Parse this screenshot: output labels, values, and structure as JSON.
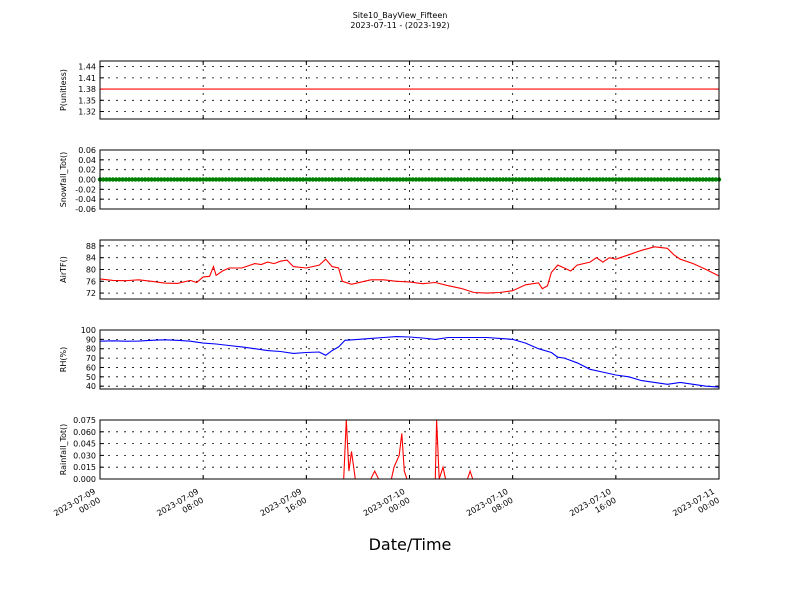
{
  "figure": {
    "title": "Site10_BayView_Fifteen",
    "subtitle": "2023-07-11 - (2023-192)",
    "xlabel": "Date/Time"
  },
  "chart_data": [
    {
      "type": "line",
      "ylabel": "P(unitless)",
      "color": "#ff0000",
      "yticks": [
        "1.44",
        "1.41",
        "1.38",
        "1.35",
        "1.32"
      ],
      "ylim": [
        1.3,
        1.455
      ],
      "x_hours": [
        0,
        48
      ],
      "series": [
        {
          "values": [
            [
              0,
              1.38
            ],
            [
              48,
              1.38
            ]
          ]
        }
      ],
      "grid": true
    },
    {
      "type": "scatter",
      "ylabel": "Snowfall_Tot()",
      "color": "#008000",
      "yticks": [
        "0.06",
        "0.04",
        "0.02",
        "0.00",
        "-0.02",
        "-0.04",
        "-0.06"
      ],
      "ylim": [
        -0.06,
        0.06
      ],
      "x_hours": [
        0,
        48
      ],
      "series": [
        {
          "values": "constant 0.00 every 15 min from 2023-07-09 00:00 to 2023-07-11 00:00"
        }
      ],
      "grid": true
    },
    {
      "type": "line",
      "ylabel": "AirTF()",
      "color": "#ff0000",
      "yticks": [
        "88",
        "84",
        "80",
        "76",
        "72"
      ],
      "ylim": [
        70,
        90
      ],
      "x_hours": [
        0,
        48
      ],
      "series": [
        {
          "values": [
            [
              0,
              76.8
            ],
            [
              1,
              76.3
            ],
            [
              2,
              76.2
            ],
            [
              3,
              76.5
            ],
            [
              4,
              76
            ],
            [
              5,
              75.4
            ],
            [
              6,
              75.3
            ],
            [
              7,
              76.3
            ],
            [
              7.5,
              75.6
            ],
            [
              8,
              77.5
            ],
            [
              8.5,
              77.7
            ],
            [
              8.8,
              81
            ],
            [
              9,
              78
            ],
            [
              9.5,
              79.5
            ],
            [
              10,
              80.5
            ],
            [
              11,
              80.5
            ],
            [
              12,
              82
            ],
            [
              12.5,
              81.7
            ],
            [
              13,
              82.5
            ],
            [
              13.5,
              82
            ],
            [
              14,
              82.8
            ],
            [
              14.5,
              83.2
            ],
            [
              15,
              81
            ],
            [
              16,
              80.5
            ],
            [
              17,
              81.5
            ],
            [
              17.5,
              83.5
            ],
            [
              18,
              81
            ],
            [
              18.5,
              80.5
            ],
            [
              18.8,
              76
            ],
            [
              19.5,
              75
            ],
            [
              20,
              75.5
            ],
            [
              21,
              76.5
            ],
            [
              22,
              76.5
            ],
            [
              23,
              76
            ],
            [
              24,
              75.8
            ],
            [
              25,
              75.2
            ],
            [
              26,
              75.6
            ],
            [
              27,
              74.5
            ],
            [
              28,
              73.6
            ],
            [
              29,
              72.2
            ],
            [
              30,
              72
            ],
            [
              31,
              72.2
            ],
            [
              32,
              72.8
            ],
            [
              33,
              74.8
            ],
            [
              34,
              75.5
            ],
            [
              34.3,
              73.5
            ],
            [
              34.7,
              74.5
            ],
            [
              35,
              79
            ],
            [
              35.5,
              81.5
            ],
            [
              36,
              80.5
            ],
            [
              36.5,
              79.5
            ],
            [
              37,
              81.5
            ],
            [
              38,
              82.5
            ],
            [
              38.5,
              84
            ],
            [
              39,
              82.5
            ],
            [
              39.5,
              84
            ],
            [
              40,
              83.5
            ],
            [
              41,
              85
            ],
            [
              42,
              86.5
            ],
            [
              43,
              87.7
            ],
            [
              44,
              87.2
            ],
            [
              44.5,
              85
            ],
            [
              45,
              83.5
            ],
            [
              46,
              82
            ],
            [
              47,
              80
            ],
            [
              48,
              77.8
            ]
          ]
        }
      ],
      "grid": true
    },
    {
      "type": "line",
      "ylabel": "RH(%)",
      "color": "#0000ff",
      "yticks": [
        "100",
        "90",
        "80",
        "70",
        "60",
        "50",
        "40"
      ],
      "ylim": [
        37,
        100
      ],
      "x_hours": [
        0,
        48
      ],
      "series": [
        {
          "values": [
            [
              0,
              88
            ],
            [
              1,
              88.5
            ],
            [
              2,
              88
            ],
            [
              3,
              88.2
            ],
            [
              4,
              89
            ],
            [
              5,
              89.5
            ],
            [
              6,
              89
            ],
            [
              7,
              88
            ],
            [
              8,
              86
            ],
            [
              9,
              85
            ],
            [
              10,
              83.5
            ],
            [
              11,
              82
            ],
            [
              12,
              80
            ],
            [
              13,
              78
            ],
            [
              14,
              77
            ],
            [
              15,
              75
            ],
            [
              16,
              76
            ],
            [
              17,
              76.5
            ],
            [
              17.5,
              73
            ],
            [
              18,
              78
            ],
            [
              18.5,
              82
            ],
            [
              19,
              89
            ],
            [
              20,
              90
            ],
            [
              21,
              91
            ],
            [
              22,
              92
            ],
            [
              23,
              93
            ],
            [
              24,
              92.5
            ],
            [
              25,
              91.5
            ],
            [
              26,
              90
            ],
            [
              27,
              92
            ],
            [
              28,
              92
            ],
            [
              29,
              92
            ],
            [
              30,
              92
            ],
            [
              31,
              91
            ],
            [
              32,
              90
            ],
            [
              33,
              86
            ],
            [
              34,
              80
            ],
            [
              35,
              76
            ],
            [
              35.5,
              71
            ],
            [
              36,
              70
            ],
            [
              37,
              65
            ],
            [
              38,
              58
            ],
            [
              39,
              55
            ],
            [
              40,
              52
            ],
            [
              41,
              50
            ],
            [
              42,
              46
            ],
            [
              43,
              44
            ],
            [
              44,
              42
            ],
            [
              45,
              44
            ],
            [
              46,
              42
            ],
            [
              47,
              40
            ],
            [
              48,
              39
            ]
          ]
        }
      ],
      "grid": true
    },
    {
      "type": "line",
      "ylabel": "Rainfall_Tot()",
      "color": "#ff0000",
      "yticks": [
        "0.075",
        "0.060",
        "0.045",
        "0.030",
        "0.015",
        "0.000"
      ],
      "ylim": [
        0,
        0.075
      ],
      "x_hours": [
        0,
        48
      ],
      "series": [
        {
          "values": [
            [
              0,
              0
            ],
            [
              18.9,
              0
            ],
            [
              19.1,
              0.075
            ],
            [
              19.3,
              0.01
            ],
            [
              19.5,
              0.035
            ],
            [
              19.8,
              0
            ],
            [
              21,
              0
            ],
            [
              21.3,
              0.01
            ],
            [
              21.6,
              0
            ],
            [
              22.6,
              0
            ],
            [
              22.8,
              0.015
            ],
            [
              23.2,
              0.03
            ],
            [
              23.4,
              0.058
            ],
            [
              23.6,
              0.01
            ],
            [
              23.8,
              0
            ],
            [
              26,
              0
            ],
            [
              26.1,
              0.075
            ],
            [
              26.3,
              0
            ],
            [
              26.6,
              0.015
            ],
            [
              26.8,
              0
            ],
            [
              28.5,
              0
            ],
            [
              28.7,
              0.01
            ],
            [
              28.9,
              0
            ],
            [
              48,
              0
            ]
          ]
        }
      ],
      "grid": true
    }
  ],
  "xticks": [
    {
      "l1": "2023-07-09",
      "l2": "00:00"
    },
    {
      "l1": "2023-07-09",
      "l2": "08:00"
    },
    {
      "l1": "2023-07-09",
      "l2": "16:00"
    },
    {
      "l1": "2023-07-10",
      "l2": "00:00"
    },
    {
      "l1": "2023-07-10",
      "l2": "08:00"
    },
    {
      "l1": "2023-07-10",
      "l2": "16:00"
    },
    {
      "l1": "2023-07-11",
      "l2": "00:00"
    }
  ]
}
